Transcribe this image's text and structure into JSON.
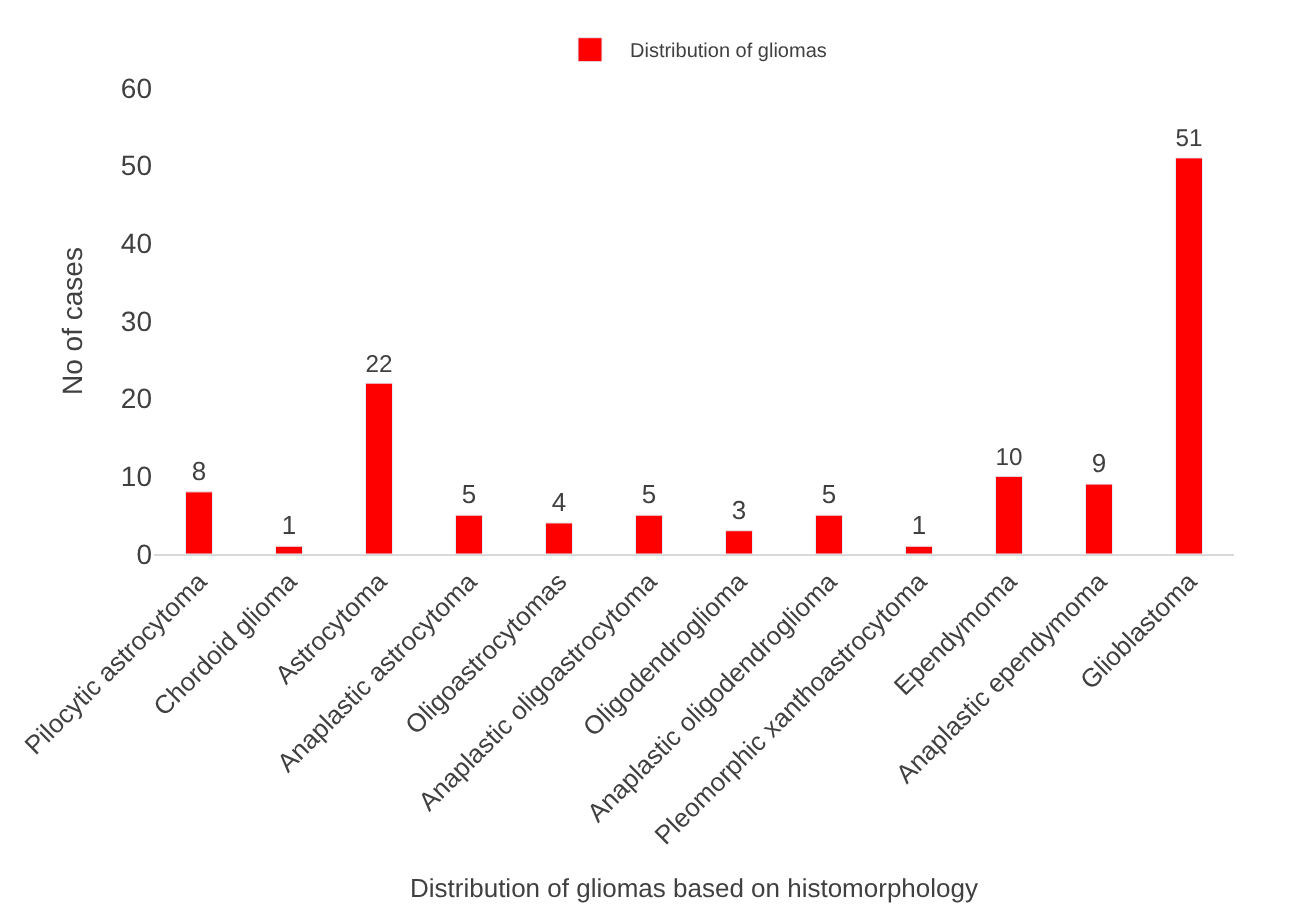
{
  "chart_data": {
    "type": "bar",
    "xlabel": "Distribution of gliomas based on histomorphology",
    "ylabel": "No of cases",
    "categories": [
      "Pilocytic astrocytoma",
      "Chordoid glioma",
      "Astrocytoma",
      "Anaplastic astrocytoma",
      "Oligoastrocytomas",
      "Anaplastic oligoastrocytoma",
      "Oligodendroglioma",
      "Anaplastic oligodendroglioma",
      "Pleomorphic xanthoastrocytoma",
      "Ependymoma",
      "Anaplastic ependymoma",
      "Glioblastoma"
    ],
    "series": [
      {
        "name": "Distribution of gliomas",
        "color": "#ff0000",
        "values": [
          8,
          1,
          22,
          5,
          4,
          5,
          3,
          5,
          1,
          10,
          9,
          51
        ]
      }
    ],
    "ylim": [
      0,
      60
    ],
    "yticks": [
      0,
      10,
      20,
      30,
      40,
      50,
      60
    ],
    "data_labels": true,
    "legend": "top"
  }
}
